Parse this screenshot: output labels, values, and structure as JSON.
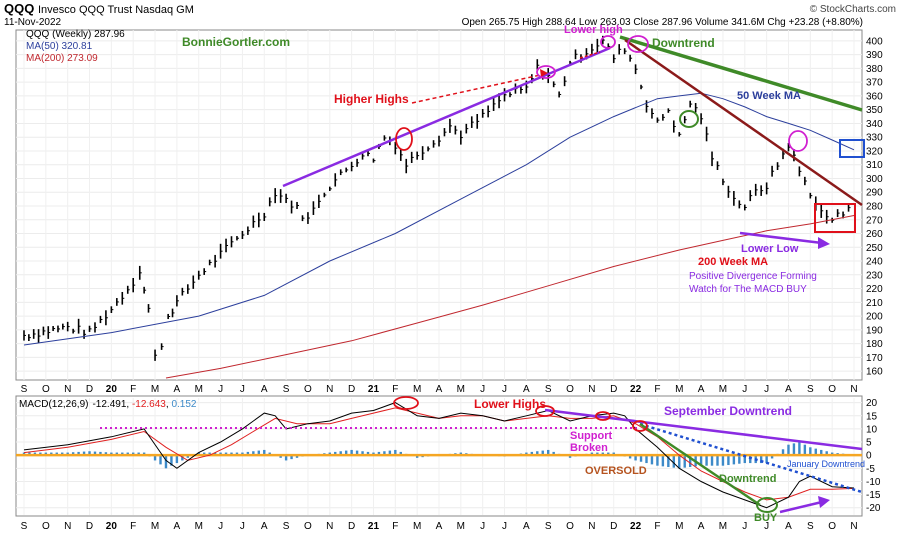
{
  "header": {
    "symbol": "QQQ",
    "description": "Invesco QQQ Trust Nasdaq GM",
    "date": "11-Nov-2022",
    "quote": "Open 265.75  High 288.64  Low 263.03  Close 287.96  Volume 341.6M  Chg +23.28 (+8.80%)",
    "attribution": "© StockCharts.com",
    "watermark": "BonnieGortler.com"
  },
  "colors": {
    "price": "#000000",
    "ma50": "#2c3f9c",
    "ma200": "#c0282f",
    "purple": "#8a2be2",
    "green": "#3f8a28",
    "darkred": "#8b1a1a",
    "red": "#e0101a",
    "magenta": "#d020d0",
    "blue": "#2050d0",
    "orange": "#f0a030",
    "macd_line": "#000000",
    "signal_line": "#e02020",
    "histogram": "#3d8ac8",
    "zero_line": "#f5a623"
  },
  "chart_data": [
    {
      "type": "line",
      "name": "price-panel",
      "legend": [
        {
          "label": "QQQ (Weekly) 287.96",
          "color": "#000000"
        },
        {
          "label": "MA(50) 320.81",
          "color": "#2c3f9c"
        },
        {
          "label": "MA(200) 273.09",
          "color": "#c0282f"
        }
      ],
      "ylim": [
        155,
        405
      ],
      "yticks": [
        160,
        170,
        180,
        190,
        200,
        210,
        220,
        230,
        240,
        250,
        260,
        270,
        280,
        290,
        300,
        310,
        320,
        330,
        340,
        350,
        360,
        370,
        380,
        390,
        400
      ],
      "x_labels": [
        "S",
        "O",
        "N",
        "D",
        "20",
        "F",
        "M",
        "A",
        "M",
        "J",
        "J",
        "A",
        "S",
        "O",
        "N",
        "D",
        "21",
        "F",
        "M",
        "A",
        "M",
        "J",
        "J",
        "A",
        "S",
        "O",
        "N",
        "D",
        "22",
        "F",
        "M",
        "A",
        "M",
        "J",
        "J",
        "A",
        "S",
        "O",
        "N"
      ],
      "x_start": "2019-09",
      "x_end": "2022-11",
      "series": [
        {
          "name": "QQQ (Weekly)",
          "points": [
            [
              0,
              186
            ],
            [
              2,
              192
            ],
            [
              3,
              188
            ],
            [
              4,
              205
            ],
            [
              5,
              225
            ],
            [
              5.3,
              233
            ],
            [
              5.7,
              205
            ],
            [
              6,
              170
            ],
            [
              6.3,
              180
            ],
            [
              6.6,
              200
            ],
            [
              7,
              210
            ],
            [
              8,
              230
            ],
            [
              9,
              245
            ],
            [
              10,
              260
            ],
            [
              11,
              275
            ],
            [
              11.5,
              290
            ],
            [
              12,
              285
            ],
            [
              12.5,
              278
            ],
            [
              13,
              270
            ],
            [
              13.5,
              285
            ],
            [
              14,
              295
            ],
            [
              15,
              310
            ],
            [
              15.5,
              318
            ],
            [
              16,
              315
            ],
            [
              16.5,
              330
            ],
            [
              17,
              325
            ],
            [
              17.5,
              310
            ],
            [
              18,
              318
            ],
            [
              19,
              330
            ],
            [
              19.5,
              338
            ],
            [
              20,
              332
            ],
            [
              21,
              345
            ],
            [
              22,
              360
            ],
            [
              23,
              365
            ],
            [
              23.5,
              380
            ],
            [
              24,
              375
            ],
            [
              24.5,
              360
            ],
            [
              25,
              385
            ],
            [
              26,
              395
            ],
            [
              26.5,
              400
            ],
            [
              27,
              388
            ],
            [
              27.5,
              395
            ],
            [
              28,
              380
            ],
            [
              28.5,
              355
            ],
            [
              29,
              340
            ],
            [
              29.5,
              350
            ],
            [
              30,
              330
            ],
            [
              30.5,
              355
            ],
            [
              31,
              345
            ],
            [
              31.5,
              315
            ],
            [
              32,
              300
            ],
            [
              32.5,
              285
            ],
            [
              33,
              280
            ],
            [
              33.5,
              290
            ],
            [
              34,
              295
            ],
            [
              34.5,
              310
            ],
            [
              35,
              325
            ],
            [
              35.5,
              305
            ],
            [
              36,
              290
            ],
            [
              36.5,
              275
            ],
            [
              37,
              270
            ],
            [
              37.5,
              275
            ],
            [
              38,
              288
            ]
          ]
        },
        {
          "name": "MA(50)",
          "points": [
            [
              0,
              179
            ],
            [
              4,
              188
            ],
            [
              8,
              200
            ],
            [
              11,
              215
            ],
            [
              14,
              240
            ],
            [
              17,
              260
            ],
            [
              20,
              285
            ],
            [
              23,
              310
            ],
            [
              25,
              330
            ],
            [
              27,
              345
            ],
            [
              29,
              358
            ],
            [
              30,
              360
            ],
            [
              31,
              362
            ],
            [
              32,
              358
            ],
            [
              33,
              352
            ],
            [
              34,
              345
            ],
            [
              35,
              340
            ],
            [
              36,
              335
            ],
            [
              37,
              328
            ],
            [
              38,
              320.81
            ]
          ]
        },
        {
          "name": "MA(200)",
          "points": [
            [
              6.5,
              155
            ],
            [
              9,
              162
            ],
            [
              12,
              172
            ],
            [
              15,
              182
            ],
            [
              18,
              195
            ],
            [
              21,
              208
            ],
            [
              24,
              222
            ],
            [
              27,
              236
            ],
            [
              30,
              248
            ],
            [
              32,
              255
            ],
            [
              34,
              262
            ],
            [
              36,
              267
            ],
            [
              38,
              273.09
            ]
          ]
        }
      ]
    },
    {
      "type": "line",
      "name": "macd-panel",
      "legend": [
        {
          "label": "MACD(12,26,9) -12.491, -12.643, 0.152",
          "color": "#000000"
        }
      ],
      "legend_parts": [
        "MACD(12,26,9)",
        "-12.491",
        "-12.643",
        "0.152"
      ],
      "ylim": [
        -22,
        21
      ],
      "yticks": [
        -20,
        -15,
        -10,
        -5,
        0,
        5,
        10,
        15,
        20
      ],
      "x_labels": [
        "S",
        "O",
        "N",
        "D",
        "20",
        "F",
        "M",
        "A",
        "M",
        "J",
        "J",
        "A",
        "S",
        "O",
        "N",
        "D",
        "21",
        "F",
        "M",
        "A",
        "M",
        "J",
        "J",
        "A",
        "S",
        "O",
        "N",
        "D",
        "22",
        "F",
        "M",
        "A",
        "M",
        "J",
        "J",
        "A",
        "S",
        "O",
        "N"
      ],
      "series": [
        {
          "name": "MACD",
          "points": [
            [
              0,
              2
            ],
            [
              2,
              4
            ],
            [
              4,
              7
            ],
            [
              5.5,
              10
            ],
            [
              6.5,
              -2
            ],
            [
              7,
              -5
            ],
            [
              8,
              1
            ],
            [
              9,
              5
            ],
            [
              10,
              10
            ],
            [
              11,
              16
            ],
            [
              11.5,
              15
            ],
            [
              12,
              10
            ],
            [
              13,
              12
            ],
            [
              14,
              13
            ],
            [
              15,
              16
            ],
            [
              16,
              17
            ],
            [
              17,
              20
            ],
            [
              18,
              15
            ],
            [
              19,
              14
            ],
            [
              20,
              16
            ],
            [
              21,
              15
            ],
            [
              22,
              13
            ],
            [
              23,
              15
            ],
            [
              24,
              17
            ],
            [
              25,
              13
            ],
            [
              26,
              15
            ],
            [
              27,
              16
            ],
            [
              27.5,
              15
            ],
            [
              28,
              10
            ],
            [
              29,
              3
            ],
            [
              30,
              -5
            ],
            [
              31,
              -10
            ],
            [
              32,
              -14
            ],
            [
              33,
              -17
            ],
            [
              34,
              -20
            ],
            [
              35,
              -16
            ],
            [
              35.5,
              -10
            ],
            [
              36,
              -8
            ],
            [
              37,
              -12
            ],
            [
              38,
              -12.491
            ]
          ]
        },
        {
          "name": "Signal",
          "points": [
            [
              0,
              1
            ],
            [
              2,
              3
            ],
            [
              4,
              6
            ],
            [
              5.5,
              9
            ],
            [
              6.5,
              3
            ],
            [
              7.5,
              -2
            ],
            [
              8.5,
              0
            ],
            [
              9.5,
              4
            ],
            [
              10.5,
              9
            ],
            [
              11.5,
              14
            ],
            [
              12.5,
              12
            ],
            [
              14,
              12
            ],
            [
              15,
              14
            ],
            [
              16,
              16
            ],
            [
              17,
              18
            ],
            [
              18,
              16
            ],
            [
              19,
              14
            ],
            [
              20,
              15
            ],
            [
              21,
              15
            ],
            [
              22,
              13
            ],
            [
              23,
              14
            ],
            [
              24,
              15
            ],
            [
              25,
              14
            ],
            [
              26,
              14
            ],
            [
              27,
              15
            ],
            [
              28,
              12
            ],
            [
              29,
              7
            ],
            [
              30,
              0
            ],
            [
              31,
              -6
            ],
            [
              32,
              -10
            ],
            [
              33,
              -14
            ],
            [
              34,
              -17
            ],
            [
              35,
              -16
            ],
            [
              36,
              -13
            ],
            [
              37,
              -13
            ],
            [
              38,
              -12.643
            ]
          ]
        },
        {
          "name": "Histogram",
          "points": [
            [
              0,
              1
            ],
            [
              1,
              1
            ],
            [
              2,
              1
            ],
            [
              3,
              1.5
            ],
            [
              4,
              1
            ],
            [
              5,
              1
            ],
            [
              5.5,
              1
            ],
            [
              6,
              -2
            ],
            [
              6.5,
              -5
            ],
            [
              7,
              -3
            ],
            [
              8,
              1
            ],
            [
              9,
              1
            ],
            [
              10,
              1
            ],
            [
              11,
              2
            ],
            [
              12,
              -2
            ],
            [
              13,
              0
            ],
            [
              14,
              1
            ],
            [
              15,
              2
            ],
            [
              16,
              1
            ],
            [
              17,
              2
            ],
            [
              18,
              -1
            ],
            [
              19,
              0
            ],
            [
              20,
              1
            ],
            [
              21,
              0
            ],
            [
              22,
              -0.5
            ],
            [
              23,
              1
            ],
            [
              24,
              2
            ],
            [
              25,
              -1
            ],
            [
              26,
              1
            ],
            [
              27,
              1
            ],
            [
              28,
              -2
            ],
            [
              29,
              -4
            ],
            [
              30,
              -5
            ],
            [
              31,
              -4
            ],
            [
              32,
              -4
            ],
            [
              33,
              -3
            ],
            [
              34,
              -3
            ],
            [
              35,
              4
            ],
            [
              35.5,
              5
            ],
            [
              36,
              3
            ],
            [
              37,
              1
            ],
            [
              38,
              0.152
            ]
          ]
        }
      ]
    }
  ],
  "annotations": {
    "higher_highs": "Higher Highs",
    "lower_high": "Lower high",
    "downtrend_top": "Downtrend",
    "ma50_label": "50 Week MA",
    "ma200_label": "200 Week MA",
    "lower_low": "Lower Low",
    "positive_divergence_1": "Positive Divergence Forming",
    "positive_divergence_2": "Watch for The MACD BUY",
    "macd_lower_highs": "Lower Highs",
    "september_downtrend": "September Downtrend",
    "support_broken_1": "Support",
    "support_broken_2": "Broken",
    "oversold": "OVERSOLD",
    "january_downtrend": "January Downtrend",
    "downtrend_macd": "Downtrend",
    "buy": "BUY"
  }
}
